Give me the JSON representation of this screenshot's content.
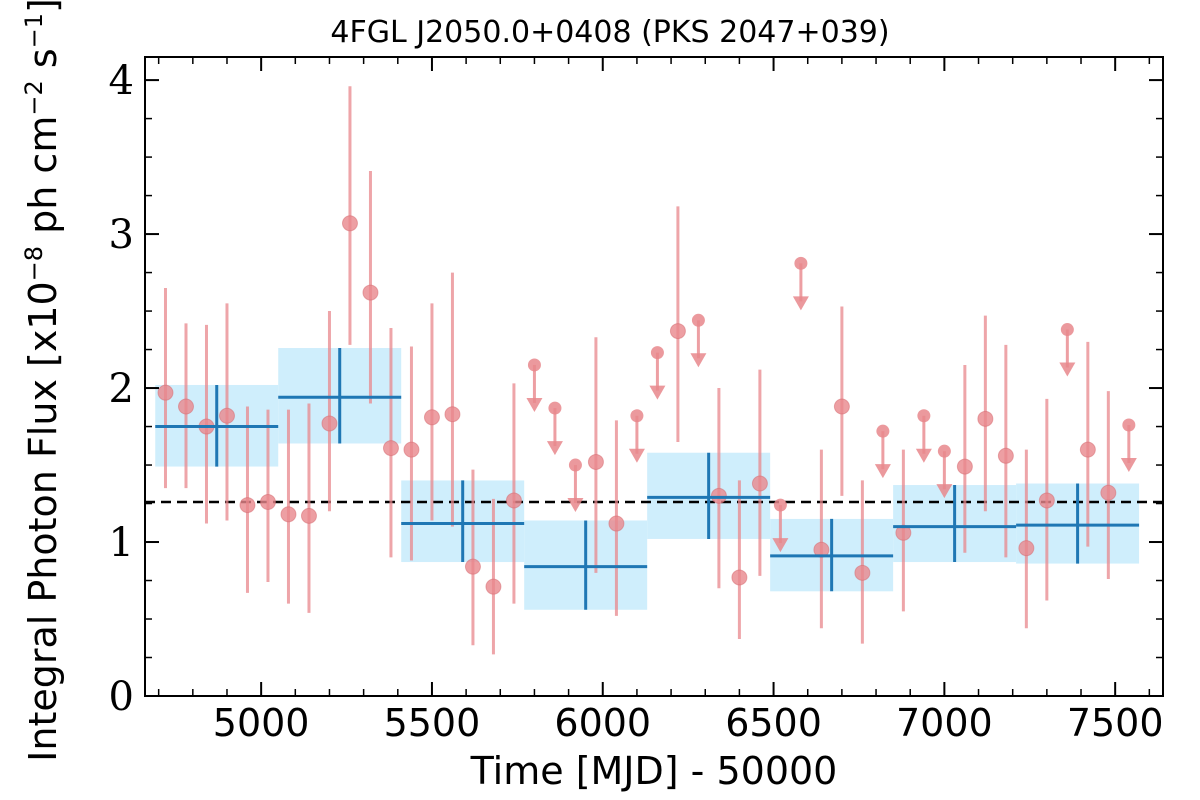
{
  "chart_data": {
    "type": "scatter",
    "title": "4FGL J2050.0+0408 (PKS 2047+039)",
    "xlabel": "Time [MJD] - 50000",
    "ylabel_parts": [
      "Integral Photon Flux [x10",
      "−8",
      " ph cm",
      "−2",
      " s",
      "−1",
      "]"
    ],
    "xlim": [
      4660,
      7640
    ],
    "ylim": [
      0,
      4.15
    ],
    "xticks": [
      5000,
      5500,
      6000,
      6500,
      7000,
      7500
    ],
    "yticks": [
      0,
      1,
      2,
      3,
      4
    ],
    "colors": {
      "points": "#e8878c",
      "bands": "#cfeefc",
      "bins": "#1f77b4",
      "mean_line": "#000000"
    },
    "mean_flux": 1.26,
    "points": [
      {
        "x": 4720,
        "y": 1.97,
        "lo": 1.35,
        "hi": 2.65
      },
      {
        "x": 4780,
        "y": 1.88,
        "lo": 1.35,
        "hi": 2.42
      },
      {
        "x": 4840,
        "y": 1.75,
        "lo": 1.12,
        "hi": 2.41
      },
      {
        "x": 4900,
        "y": 1.82,
        "lo": 1.14,
        "hi": 2.55
      },
      {
        "x": 4960,
        "y": 1.24,
        "lo": 0.67,
        "hi": 1.88
      },
      {
        "x": 5020,
        "y": 1.26,
        "lo": 0.74,
        "hi": 1.86
      },
      {
        "x": 5080,
        "y": 1.18,
        "lo": 0.6,
        "hi": 1.86
      },
      {
        "x": 5140,
        "y": 1.17,
        "lo": 0.54,
        "hi": 1.9
      },
      {
        "x": 5200,
        "y": 1.77,
        "lo": 1.2,
        "hi": 2.5
      },
      {
        "x": 5260,
        "y": 3.07,
        "lo": 2.28,
        "hi": 3.96
      },
      {
        "x": 5320,
        "y": 2.62,
        "lo": 1.9,
        "hi": 3.41
      },
      {
        "x": 5380,
        "y": 1.61,
        "lo": 0.9,
        "hi": 2.39
      },
      {
        "x": 5440,
        "y": 1.6,
        "lo": 0.88,
        "hi": 2.27
      },
      {
        "x": 5500,
        "y": 1.81,
        "lo": 1.14,
        "hi": 2.55
      },
      {
        "x": 5560,
        "y": 1.83,
        "lo": 1.1,
        "hi": 2.75
      },
      {
        "x": 5620,
        "y": 0.84,
        "lo": 0.33,
        "hi": 1.47
      },
      {
        "x": 5680,
        "y": 0.71,
        "lo": 0.27,
        "hi": 1.28
      },
      {
        "x": 5740,
        "y": 1.27,
        "lo": 0.6,
        "hi": 2.03
      },
      {
        "x": 5800,
        "y": 2.15,
        "ul": true
      },
      {
        "x": 5860,
        "y": 1.87,
        "ul": true
      },
      {
        "x": 5920,
        "y": 1.5,
        "ul": true
      },
      {
        "x": 5980,
        "y": 1.52,
        "lo": 0.8,
        "hi": 2.33
      },
      {
        "x": 6040,
        "y": 1.12,
        "lo": 0.52,
        "hi": 1.79
      },
      {
        "x": 6100,
        "y": 1.82,
        "ul": true
      },
      {
        "x": 6160,
        "y": 2.23,
        "ul": true
      },
      {
        "x": 6220,
        "y": 2.37,
        "lo": 1.65,
        "hi": 3.18
      },
      {
        "x": 6280,
        "y": 2.44,
        "ul": true
      },
      {
        "x": 6340,
        "y": 1.3,
        "lo": 0.7,
        "hi": 2.0
      },
      {
        "x": 6400,
        "y": 0.77,
        "lo": 0.37,
        "hi": 1.4
      },
      {
        "x": 6460,
        "y": 1.38,
        "lo": 0.78,
        "hi": 2.12
      },
      {
        "x": 6520,
        "y": 1.24,
        "ul": true
      },
      {
        "x": 6580,
        "y": 2.81,
        "ul": true
      },
      {
        "x": 6640,
        "y": 0.95,
        "lo": 0.44,
        "hi": 1.6
      },
      {
        "x": 6700,
        "y": 1.88,
        "lo": 1.3,
        "hi": 2.53
      },
      {
        "x": 6760,
        "y": 0.8,
        "lo": 0.34,
        "hi": 1.4
      },
      {
        "x": 6820,
        "y": 1.72,
        "ul": true
      },
      {
        "x": 6880,
        "y": 1.06,
        "lo": 0.55,
        "hi": 1.6
      },
      {
        "x": 6940,
        "y": 1.82,
        "ul": true
      },
      {
        "x": 7000,
        "y": 1.59,
        "ul": true
      },
      {
        "x": 7060,
        "y": 1.49,
        "lo": 0.93,
        "hi": 2.15
      },
      {
        "x": 7120,
        "y": 1.8,
        "lo": 1.2,
        "hi": 2.47
      },
      {
        "x": 7180,
        "y": 1.56,
        "lo": 0.9,
        "hi": 2.28
      },
      {
        "x": 7240,
        "y": 0.96,
        "lo": 0.44,
        "hi": 1.6
      },
      {
        "x": 7300,
        "y": 1.27,
        "lo": 0.62,
        "hi": 1.93
      },
      {
        "x": 7360,
        "y": 2.38,
        "ul": true
      },
      {
        "x": 7420,
        "y": 1.6,
        "lo": 0.97,
        "hi": 2.3
      },
      {
        "x": 7480,
        "y": 1.32,
        "lo": 0.76,
        "hi": 1.98
      },
      {
        "x": 7540,
        "y": 1.76,
        "ul": true
      }
    ],
    "bins": [
      {
        "x0": 4690,
        "x1": 5050,
        "xc": 4870,
        "y": 1.75,
        "ylo": 1.49,
        "yhi": 2.02
      },
      {
        "x0": 5050,
        "x1": 5410,
        "xc": 5230,
        "y": 1.94,
        "ylo": 1.64,
        "yhi": 2.26
      },
      {
        "x0": 5410,
        "x1": 5770,
        "xc": 5590,
        "y": 1.12,
        "ylo": 0.87,
        "yhi": 1.4
      },
      {
        "x0": 5770,
        "x1": 6130,
        "xc": 5950,
        "y": 0.84,
        "ylo": 0.56,
        "yhi": 1.14
      },
      {
        "x0": 6130,
        "x1": 6490,
        "xc": 6310,
        "y": 1.29,
        "ylo": 1.02,
        "yhi": 1.58
      },
      {
        "x0": 6490,
        "x1": 6850,
        "xc": 6670,
        "y": 0.91,
        "ylo": 0.68,
        "yhi": 1.15
      },
      {
        "x0": 6850,
        "x1": 7210,
        "xc": 7030,
        "y": 1.1,
        "ylo": 0.87,
        "yhi": 1.37
      },
      {
        "x0": 7210,
        "x1": 7570,
        "xc": 7390,
        "y": 1.11,
        "ylo": 0.86,
        "yhi": 1.38
      }
    ]
  }
}
